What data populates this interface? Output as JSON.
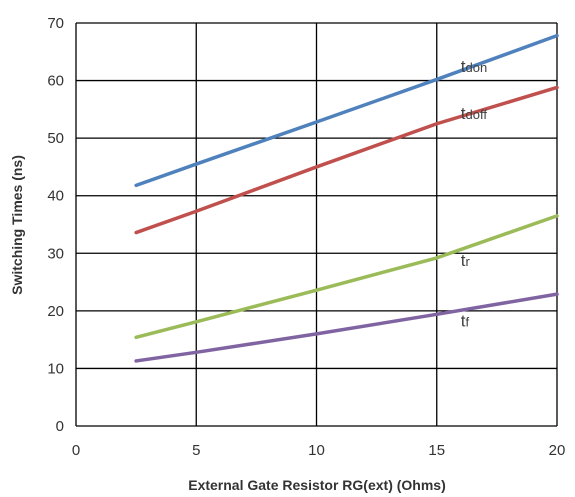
{
  "chart_data": {
    "type": "line",
    "xlabel": "External Gate Resistor RG(ext) (Ohms)",
    "ylabel": "Switching Times (ns)",
    "xlim": [
      0,
      20
    ],
    "ylim": [
      0,
      70
    ],
    "xticks": [
      0,
      5,
      10,
      15,
      20
    ],
    "yticks": [
      0,
      10,
      20,
      30,
      40,
      50,
      60,
      70
    ],
    "grid": true,
    "legend": "inline labels at right",
    "series": [
      {
        "name_main": "t",
        "name_sub": "don",
        "color": "#4F81BD",
        "x": [
          2.5,
          5,
          10,
          15,
          20
        ],
        "y": [
          41.8,
          45.5,
          52.8,
          60.2,
          67.8
        ]
      },
      {
        "name_main": "t",
        "name_sub": "doff",
        "color": "#C0504D",
        "x": [
          2.5,
          5,
          10,
          15,
          20
        ],
        "y": [
          33.6,
          37.3,
          45.0,
          52.5,
          58.8
        ]
      },
      {
        "name_main": "t",
        "name_sub": "r",
        "color": "#9BBB59",
        "x": [
          2.5,
          5,
          10,
          15,
          20
        ],
        "y": [
          15.4,
          18.1,
          23.6,
          29.2,
          36.5
        ]
      },
      {
        "name_main": "t",
        "name_sub": "f",
        "color": "#8064A2",
        "x": [
          2.5,
          5,
          10,
          15,
          20
        ],
        "y": [
          11.3,
          12.8,
          16.0,
          19.4,
          22.9
        ]
      }
    ]
  }
}
